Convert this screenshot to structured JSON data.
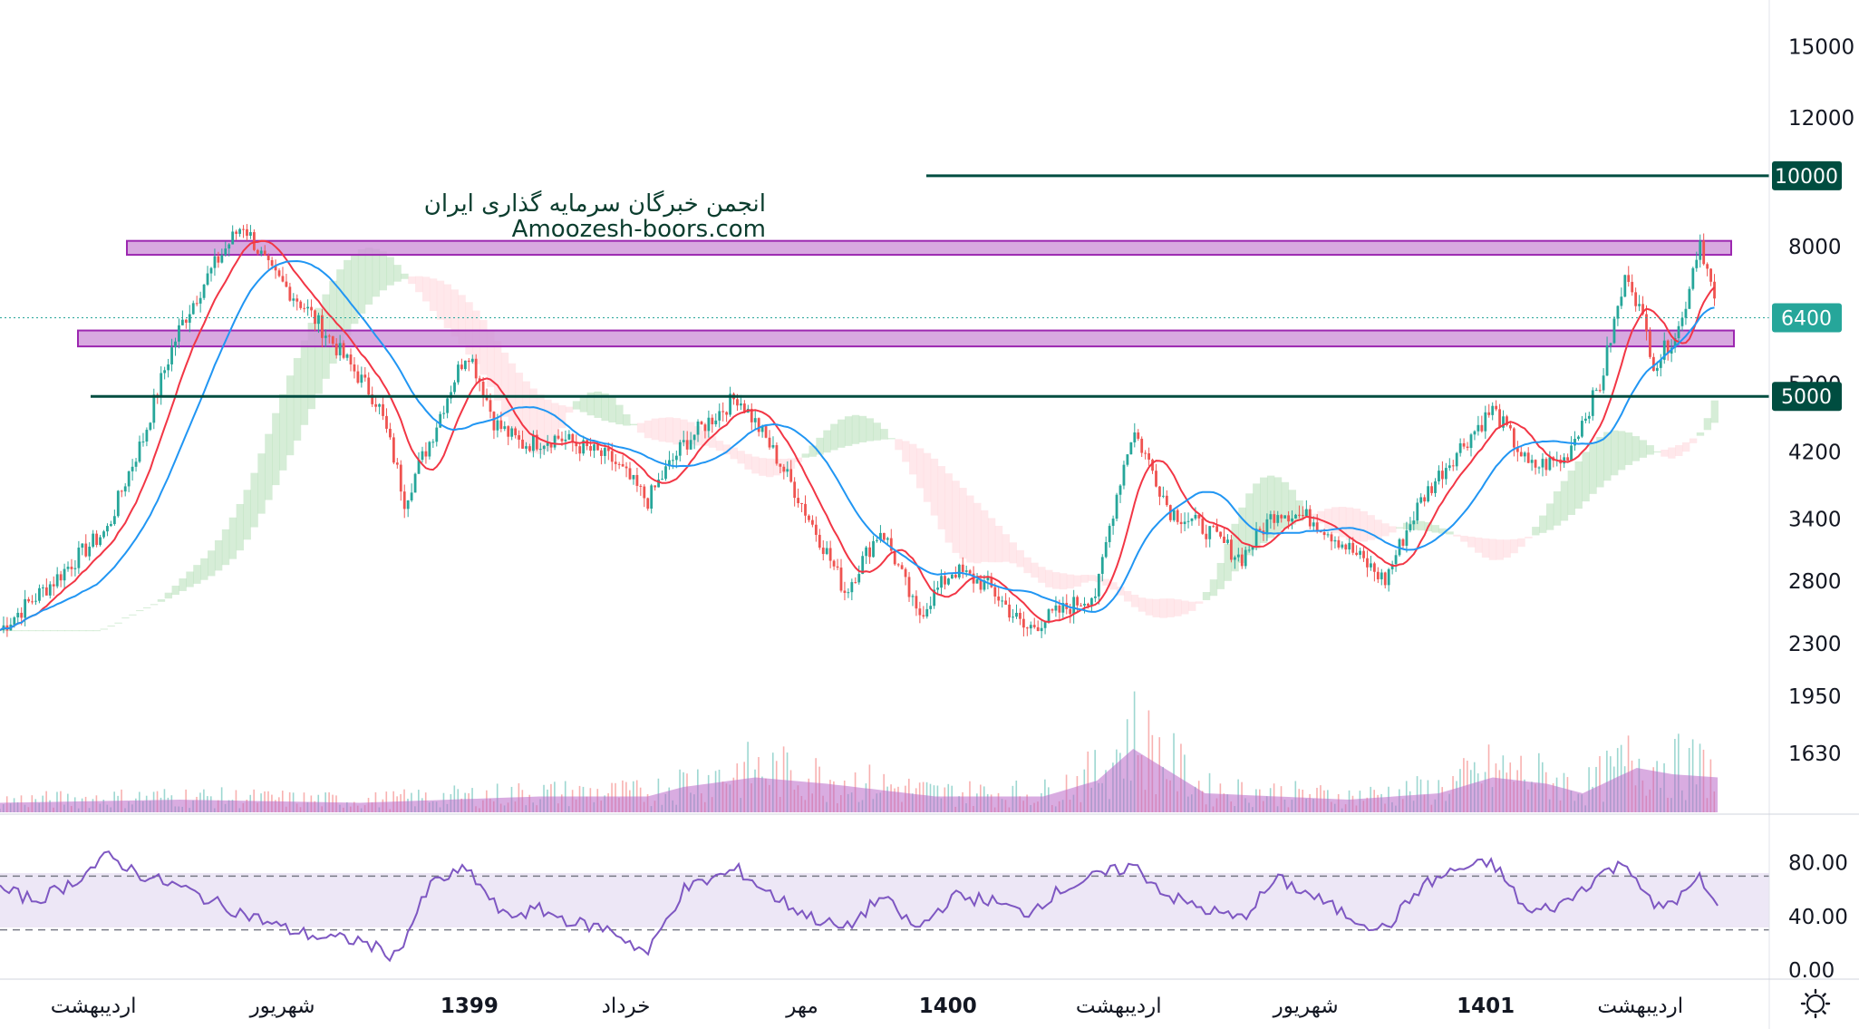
{
  "colors": {
    "background": "#ffffff",
    "candle_up": "#26a69a",
    "candle_down": "#ef5350",
    "sma_fast": "#f23645",
    "sma_slow": "#2196f3",
    "cloud_green": "#a5d6a7",
    "cloud_red": "#ffcdd2",
    "zone_fill": "#ce93d8",
    "zone_stroke": "#9c27b0",
    "level_line": "#004d40",
    "volume_ma": "#ba68c8",
    "rsi_line": "#7e57c2",
    "rsi_band": "#ede7f6",
    "last_price_tag": "#26a69a",
    "level_tag": "#004d40"
  },
  "watermark": {
    "line1": "انجمن خبرگان سرمایه گذاری ایران",
    "line2": "Amoozesh-boors.com"
  },
  "settings_icon": "gear-icon",
  "chart_data": {
    "type": "candlestick",
    "price_axis": {
      "scale": "log",
      "ticks": [
        "15000",
        "12000",
        "8000",
        "5200",
        "4200",
        "3400",
        "2800",
        "2300",
        "1950",
        "1630"
      ],
      "range": [
        1500,
        16500
      ]
    },
    "time_axis": {
      "ticks": [
        {
          "label": "اردیبهشت",
          "bold": false
        },
        {
          "label": "شهریور",
          "bold": false
        },
        {
          "label": "1399",
          "bold": true
        },
        {
          "label": "خرداد",
          "bold": false
        },
        {
          "label": "مهر",
          "bold": false
        },
        {
          "label": "1400",
          "bold": true
        },
        {
          "label": "اردیبهشت",
          "bold": false
        },
        {
          "label": "شهریور",
          "bold": false
        },
        {
          "label": "1401",
          "bold": true
        },
        {
          "label": "اردیبهشت",
          "bold": false
        }
      ]
    },
    "price_path": [
      {
        "t": 0,
        "p": 2400
      },
      {
        "t": 3,
        "p": 2800
      },
      {
        "t": 6,
        "p": 3300
      },
      {
        "t": 8,
        "p": 4400
      },
      {
        "t": 10,
        "p": 6200
      },
      {
        "t": 12,
        "p": 7600
      },
      {
        "t": 13.5,
        "p": 8600
      },
      {
        "t": 15,
        "p": 7400
      },
      {
        "t": 17,
        "p": 6600
      },
      {
        "t": 19,
        "p": 5700
      },
      {
        "t": 21,
        "p": 4900
      },
      {
        "t": 22.5,
        "p": 3600
      },
      {
        "t": 24,
        "p": 4400
      },
      {
        "t": 26,
        "p": 5800
      },
      {
        "t": 27.5,
        "p": 4600
      },
      {
        "t": 29,
        "p": 4300
      },
      {
        "t": 31,
        "p": 4400
      },
      {
        "t": 34,
        "p": 4100
      },
      {
        "t": 36,
        "p": 3600
      },
      {
        "t": 38,
        "p": 4300
      },
      {
        "t": 41,
        "p": 5000
      },
      {
        "t": 43,
        "p": 4200
      },
      {
        "t": 45,
        "p": 3400
      },
      {
        "t": 47,
        "p": 2700
      },
      {
        "t": 49,
        "p": 3300
      },
      {
        "t": 51,
        "p": 2500
      },
      {
        "t": 53,
        "p": 2900
      },
      {
        "t": 55,
        "p": 2750
      },
      {
        "t": 57,
        "p": 2400
      },
      {
        "t": 59,
        "p": 2550
      },
      {
        "t": 61,
        "p": 2700
      },
      {
        "t": 63,
        "p": 4500
      },
      {
        "t": 65,
        "p": 3500
      },
      {
        "t": 67,
        "p": 3300
      },
      {
        "t": 69,
        "p": 3000
      },
      {
        "t": 71,
        "p": 3500
      },
      {
        "t": 73,
        "p": 3400
      },
      {
        "t": 75,
        "p": 3100
      },
      {
        "t": 77,
        "p": 2800
      },
      {
        "t": 79,
        "p": 3600
      },
      {
        "t": 81,
        "p": 4200
      },
      {
        "t": 83,
        "p": 4800
      },
      {
        "t": 85,
        "p": 4000
      },
      {
        "t": 87,
        "p": 4100
      },
      {
        "t": 89,
        "p": 5200
      },
      {
        "t": 90.5,
        "p": 7400
      },
      {
        "t": 92,
        "p": 5500
      },
      {
        "t": 93.5,
        "p": 6300
      },
      {
        "t": 94.5,
        "p": 8200
      },
      {
        "t": 95.5,
        "p": 6400
      }
    ],
    "last_price": "6400",
    "levels": [
      {
        "price": 10000,
        "label": "10000"
      },
      {
        "price": 5000,
        "label": "5000"
      }
    ],
    "zones": [
      {
        "low": 7800,
        "high": 8150
      },
      {
        "low": 5850,
        "high": 6150
      }
    ],
    "rsi": {
      "ticks": [
        "80.00",
        "40.00",
        "0.00"
      ],
      "upper_band": 70,
      "lower_band": 30,
      "range": [
        0,
        100
      ],
      "path": [
        {
          "t": 0,
          "v": 60
        },
        {
          "t": 2,
          "v": 52
        },
        {
          "t": 4,
          "v": 65
        },
        {
          "t": 6,
          "v": 85
        },
        {
          "t": 8,
          "v": 70
        },
        {
          "t": 10,
          "v": 62
        },
        {
          "t": 12,
          "v": 50
        },
        {
          "t": 14,
          "v": 40
        },
        {
          "t": 16,
          "v": 30
        },
        {
          "t": 18,
          "v": 24
        },
        {
          "t": 20,
          "v": 22
        },
        {
          "t": 22,
          "v": 10
        },
        {
          "t": 24,
          "v": 65
        },
        {
          "t": 26,
          "v": 75
        },
        {
          "t": 28,
          "v": 40
        },
        {
          "t": 30,
          "v": 45
        },
        {
          "t": 32,
          "v": 35
        },
        {
          "t": 34,
          "v": 30
        },
        {
          "t": 36,
          "v": 12
        },
        {
          "t": 38,
          "v": 60
        },
        {
          "t": 41,
          "v": 75
        },
        {
          "t": 43,
          "v": 55
        },
        {
          "t": 45,
          "v": 40
        },
        {
          "t": 47,
          "v": 30
        },
        {
          "t": 49,
          "v": 55
        },
        {
          "t": 51,
          "v": 30
        },
        {
          "t": 53,
          "v": 55
        },
        {
          "t": 55,
          "v": 52
        },
        {
          "t": 57,
          "v": 42
        },
        {
          "t": 59,
          "v": 60
        },
        {
          "t": 61,
          "v": 70
        },
        {
          "t": 63,
          "v": 78
        },
        {
          "t": 65,
          "v": 55
        },
        {
          "t": 67,
          "v": 45
        },
        {
          "t": 69,
          "v": 38
        },
        {
          "t": 71,
          "v": 68
        },
        {
          "t": 73,
          "v": 55
        },
        {
          "t": 75,
          "v": 40
        },
        {
          "t": 77,
          "v": 30
        },
        {
          "t": 79,
          "v": 62
        },
        {
          "t": 81,
          "v": 75
        },
        {
          "t": 83,
          "v": 80
        },
        {
          "t": 85,
          "v": 42
        },
        {
          "t": 87,
          "v": 50
        },
        {
          "t": 89,
          "v": 72
        },
        {
          "t": 90.5,
          "v": 80
        },
        {
          "t": 92,
          "v": 45
        },
        {
          "t": 93.5,
          "v": 55
        },
        {
          "t": 94.5,
          "v": 68
        },
        {
          "t": 95.5,
          "v": 46
        }
      ]
    },
    "volume_ma_path": [
      {
        "t": 0,
        "v": 0.15
      },
      {
        "t": 10,
        "v": 0.2
      },
      {
        "t": 20,
        "v": 0.15
      },
      {
        "t": 30,
        "v": 0.25
      },
      {
        "t": 36,
        "v": 0.25
      },
      {
        "t": 38,
        "v": 0.4
      },
      {
        "t": 42,
        "v": 0.55
      },
      {
        "t": 46,
        "v": 0.45
      },
      {
        "t": 52,
        "v": 0.25
      },
      {
        "t": 58,
        "v": 0.25
      },
      {
        "t": 61,
        "v": 0.5
      },
      {
        "t": 63,
        "v": 1.0
      },
      {
        "t": 65,
        "v": 0.65
      },
      {
        "t": 67,
        "v": 0.3
      },
      {
        "t": 75,
        "v": 0.2
      },
      {
        "t": 80,
        "v": 0.3
      },
      {
        "t": 83,
        "v": 0.55
      },
      {
        "t": 86,
        "v": 0.45
      },
      {
        "t": 88,
        "v": 0.3
      },
      {
        "t": 91,
        "v": 0.7
      },
      {
        "t": 93,
        "v": 0.6
      },
      {
        "t": 95.5,
        "v": 0.55
      }
    ]
  }
}
